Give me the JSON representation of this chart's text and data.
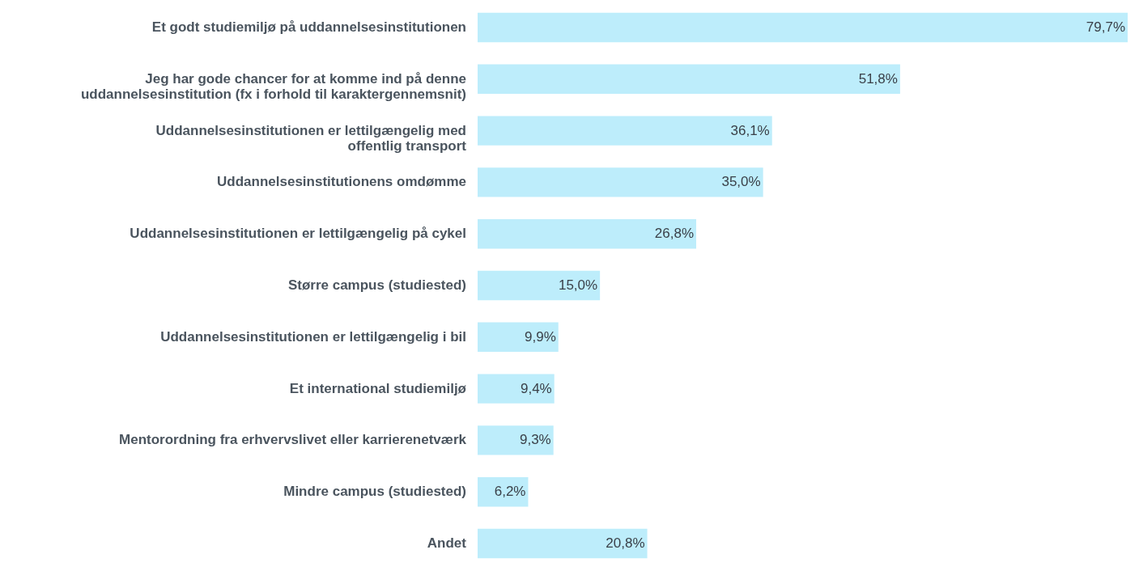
{
  "chart_data": {
    "type": "bar",
    "orientation": "horizontal",
    "color": "#bdedfb",
    "categories": [
      "Et godt studiemiljø på uddannelsesinstitutionen",
      "Jeg har gode chancer for at komme ind på denne\nuddannelsesinstitution (fx i forhold til karaktergennemsnit)",
      "Uddannelsesinstitutionen er lettilgængelig med\noffentlig transport",
      "Uddannelsesinstitutionens omdømme",
      "Uddannelsesinstitutionen er lettilgængelig på cykel",
      "Større campus (studiested)",
      "Uddannelsesinstitutionen er lettilgængelig i bil",
      "Et international studiemiljø",
      "Mentorordning fra erhvervslivet eller karrierenetværk",
      "Mindre campus (studiested)",
      "Andet"
    ],
    "values": [
      79.7,
      51.8,
      36.1,
      35.0,
      26.8,
      15.0,
      9.9,
      9.4,
      9.3,
      6.2,
      20.8
    ],
    "value_labels": [
      "79,7%",
      "51,8%",
      "36,1%",
      "35,0%",
      "26,8%",
      "15,0%",
      "9,9%",
      "9,4%",
      "9,3%",
      "6,2%",
      "20,8%"
    ]
  }
}
